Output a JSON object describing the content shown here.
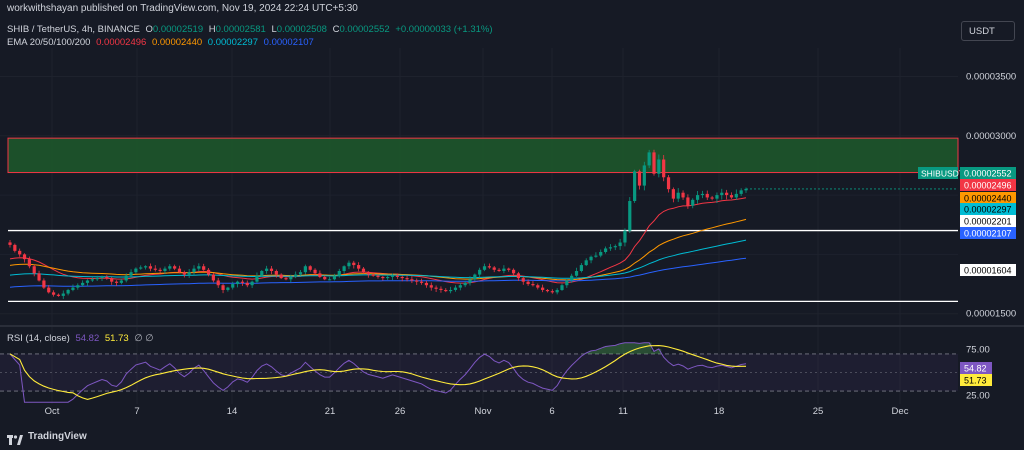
{
  "header": {
    "publisher_line": "workwithshayan published on TradingView.com, Nov 19, 2024 22:24 UTC+5:30"
  },
  "symbol": {
    "title": "SHIB / TetherUS, 4h, BINANCE",
    "open_label": "O",
    "open": "0.00002519",
    "high_label": "H",
    "high": "0.00002581",
    "low_label": "L",
    "low": "0.00002508",
    "close_label": "C",
    "close": "0.00002552",
    "change": "+0.00000033 (+1.31%)"
  },
  "ema_legend": {
    "title": "EMA 20/50/100/200",
    "values": [
      "0.00002496",
      "0.00002440",
      "0.00002297",
      "0.00002107"
    ],
    "colors": [
      "#f23645",
      "#ff9800",
      "#00bcd4",
      "#2962ff"
    ]
  },
  "currency_button": "USDT",
  "price_axis": {
    "ticks": [
      "0.00003500",
      "0.00003000",
      "0.00001500"
    ]
  },
  "price_labels": [
    {
      "text": "SHIBUSDT",
      "value": "0.00002552",
      "bg": "#089981",
      "fg": "#ffffff"
    },
    {
      "value": "0.00002496",
      "bg": "#f23645",
      "fg": "#ffffff"
    },
    {
      "value": "0.00002440",
      "bg": "#ff9800",
      "fg": "#000000"
    },
    {
      "value": "0.00002201",
      "bg": "#ffffff",
      "fg": "#000000"
    },
    {
      "value": "0.00002297",
      "bg": "#00bcd4",
      "fg": "#000000"
    },
    {
      "value": "0.00002107",
      "bg": "#2962ff",
      "fg": "#ffffff"
    },
    {
      "value": "0.00001604",
      "bg": "#ffffff",
      "fg": "#000000"
    }
  ],
  "rsi": {
    "title": "RSI (14, close)",
    "value": "54.82",
    "ma_value": "51.73",
    "extra": "∅ ∅",
    "ticks": [
      "75.00",
      "25.00"
    ],
    "label_values": [
      "54.82",
      "51.73"
    ],
    "colors": {
      "rsi": "#7e57c2",
      "ma": "#ffeb3b"
    }
  },
  "time_axis": [
    "Oct",
    "7",
    "14",
    "21",
    "26",
    "Nov",
    "6",
    "11",
    "18",
    "25",
    "Dec"
  ],
  "footer": {
    "brand": "TradingView"
  },
  "chart_data": {
    "type": "candlestick",
    "symbol": "SHIB / TetherUS",
    "timeframe": "4h",
    "price_range": [
      1.43e-05,
      3.74e-05
    ],
    "resistance_zone": [
      2.69e-05,
      2.98e-05
    ],
    "support_lines": [
      2.201e-05,
      1.604e-05
    ],
    "close_series": [
      2.08e-05,
      2.03e-05,
      2e-05,
      1.96e-05,
      1.9e-05,
      1.84e-05,
      1.78e-05,
      1.72e-05,
      1.68e-05,
      1.66e-05,
      1.65e-05,
      1.67e-05,
      1.7e-05,
      1.72e-05,
      1.74e-05,
      1.76e-05,
      1.78e-05,
      1.79e-05,
      1.8e-05,
      1.81e-05,
      1.8e-05,
      1.77e-05,
      1.76e-05,
      1.78e-05,
      1.82e-05,
      1.85e-05,
      1.88e-05,
      1.89e-05,
      1.9e-05,
      1.88e-05,
      1.87e-05,
      1.86e-05,
      1.88e-05,
      1.9e-05,
      1.88e-05,
      1.85e-05,
      1.83e-05,
      1.85e-05,
      1.88e-05,
      1.9e-05,
      1.87e-05,
      1.83e-05,
      1.78e-05,
      1.74e-05,
      1.7e-05,
      1.72e-05,
      1.75e-05,
      1.77e-05,
      1.76e-05,
      1.74e-05,
      1.77e-05,
      1.82e-05,
      1.86e-05,
      1.88e-05,
      1.86e-05,
      1.83e-05,
      1.8e-05,
      1.79e-05,
      1.81e-05,
      1.83e-05,
      1.85e-05,
      1.9e-05,
      1.87e-05,
      1.84e-05,
      1.81e-05,
      1.79e-05,
      1.79e-05,
      1.82e-05,
      1.86e-05,
      1.9e-05,
      1.93e-05,
      1.91e-05,
      1.88e-05,
      1.85e-05,
      1.83e-05,
      1.82e-05,
      1.81e-05,
      1.8e-05,
      1.81e-05,
      1.82e-05,
      1.81e-05,
      1.8e-05,
      1.79e-05,
      1.78e-05,
      1.77e-05,
      1.76e-05,
      1.74e-05,
      1.72e-05,
      1.71e-05,
      1.7e-05,
      1.69e-05,
      1.7e-05,
      1.72e-05,
      1.74e-05,
      1.76e-05,
      1.79e-05,
      1.83e-05,
      1.87e-05,
      1.9e-05,
      1.89e-05,
      1.87e-05,
      1.86e-05,
      1.88e-05,
      1.87e-05,
      1.84e-05,
      1.8e-05,
      1.77e-05,
      1.75e-05,
      1.74e-05,
      1.72e-05,
      1.7e-05,
      1.69e-05,
      1.68e-05,
      1.7e-05,
      1.74e-05,
      1.78e-05,
      1.82e-05,
      1.86e-05,
      1.91e-05,
      1.95e-05,
      1.98e-05,
      1.99e-05,
      2.02e-05,
      2.05e-05,
      2.06e-05,
      2.07e-05,
      2.1e-05,
      2.2e-05,
      2.45e-05,
      2.7e-05,
      2.58e-05,
      2.75e-05,
      2.86e-05,
      2.68e-05,
      2.8e-05,
      2.65e-05,
      2.55e-05,
      2.47e-05,
      2.52e-05,
      2.48e-05,
      2.41e-05,
      2.46e-05,
      2.5e-05,
      2.51e-05,
      2.48e-05,
      2.47e-05,
      2.5e-05,
      2.52e-05,
      2.5e-05,
      2.48e-05,
      2.51e-05,
      2.54e-05,
      2.552e-05
    ]
  }
}
